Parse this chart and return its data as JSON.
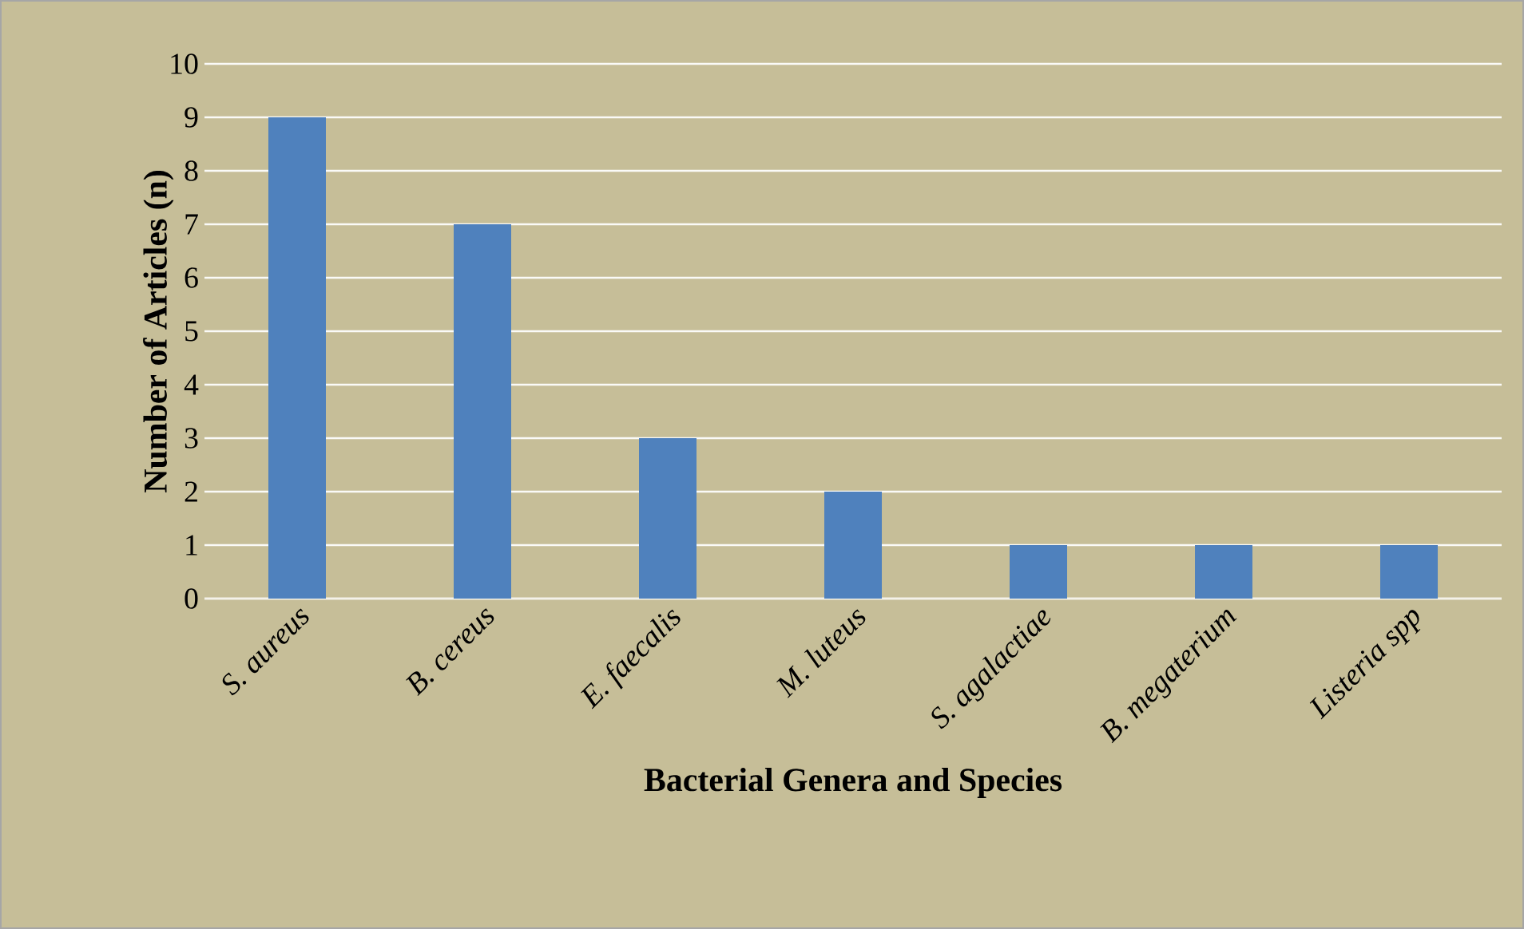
{
  "chart_data": {
    "type": "bar",
    "xlabel": "Bacterial Genera and Species",
    "ylabel": "Number of Articles (n)",
    "categories": [
      "S. aureus",
      "B. cereus",
      "E. faecalis",
      "M. luteus",
      "S. agalactiae",
      "B. megaterium",
      "Listeria spp"
    ],
    "values": [
      9,
      7,
      3,
      2,
      1,
      1,
      1
    ],
    "color": "#4f81bd",
    "ylim": [
      0,
      10
    ],
    "yticks": [
      0,
      1,
      2,
      3,
      4,
      5,
      6,
      7,
      8,
      9,
      10
    ],
    "grid": "y"
  }
}
